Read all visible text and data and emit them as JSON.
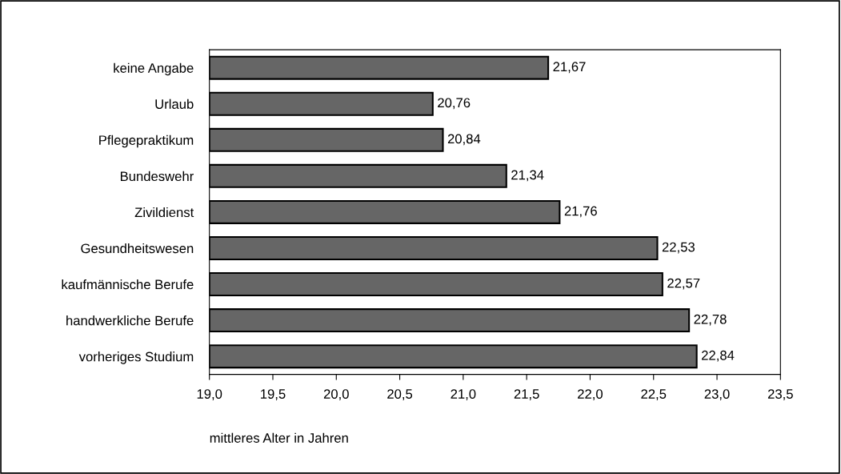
{
  "chart_data": {
    "type": "bar",
    "orientation": "horizontal",
    "categories": [
      "keine Angabe",
      "Urlaub",
      "Pflegepraktikum",
      "Bundeswehr",
      "Zivildienst",
      "Gesundheitswesen",
      "kaufmännische Berufe",
      "handwerkliche Berufe",
      "vorheriges Studium"
    ],
    "values": [
      21.67,
      20.76,
      20.84,
      21.34,
      21.76,
      22.53,
      22.57,
      22.78,
      22.84
    ],
    "value_labels": [
      "21,67",
      "20,76",
      "20,84",
      "21,34",
      "21,76",
      "22,53",
      "22,57",
      "22,78",
      "22,84"
    ],
    "color": "#666666",
    "xlabel": "mittleres Alter in Jahren",
    "xlim": [
      19.0,
      23.5
    ],
    "xticks": [
      {
        "value": 19.0,
        "label": "19,0"
      },
      {
        "value": 19.5,
        "label": "19,5"
      },
      {
        "value": 20.0,
        "label": "20,0"
      },
      {
        "value": 20.5,
        "label": "20,5"
      },
      {
        "value": 21.0,
        "label": "21,0"
      },
      {
        "value": 21.5,
        "label": "21,5"
      },
      {
        "value": 22.0,
        "label": "22,0"
      },
      {
        "value": 22.5,
        "label": "22,5"
      },
      {
        "value": 23.0,
        "label": "23,0"
      },
      {
        "value": 23.5,
        "label": "23,5"
      }
    ],
    "grid": false,
    "legend": false
  }
}
